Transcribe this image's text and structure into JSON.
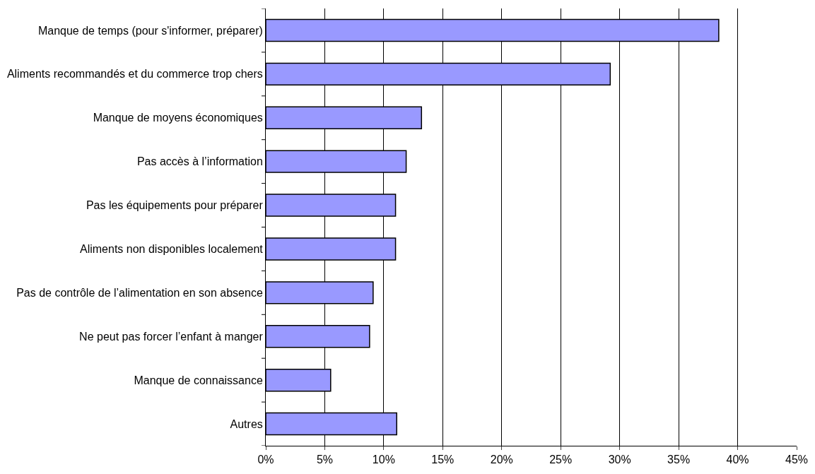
{
  "chart_data": {
    "type": "bar",
    "orientation": "horizontal",
    "categories": [
      "Manque de temps (pour s'informer, préparer)",
      "Aliments recommandés et du commerce trop chers",
      "Manque de moyens économiques",
      "Pas accès à l’information",
      "Pas les équipements pour préparer",
      "Aliments non disponibles localement",
      "Pas de contrôle de l’alimentation en son absence",
      "Ne peut pas forcer l’enfant à manger",
      "Manque de connaissance",
      "Autres"
    ],
    "values": [
      38.4,
      29.2,
      13.2,
      11.9,
      11.0,
      11.0,
      9.1,
      8.8,
      5.5,
      11.1
    ],
    "color": "#9999ff",
    "xlim": [
      0,
      45
    ],
    "xticks": [
      {
        "value": 0,
        "label": "0%"
      },
      {
        "value": 5,
        "label": "5%"
      },
      {
        "value": 10,
        "label": "10%"
      },
      {
        "value": 15,
        "label": "15%"
      },
      {
        "value": 20,
        "label": "20%"
      },
      {
        "value": 25,
        "label": "25%"
      },
      {
        "value": 30,
        "label": "30%"
      },
      {
        "value": 35,
        "label": "35%"
      },
      {
        "value": 40,
        "label": "40%"
      },
      {
        "value": 45,
        "label": "45%"
      }
    ],
    "grid": "x",
    "legend": false
  }
}
